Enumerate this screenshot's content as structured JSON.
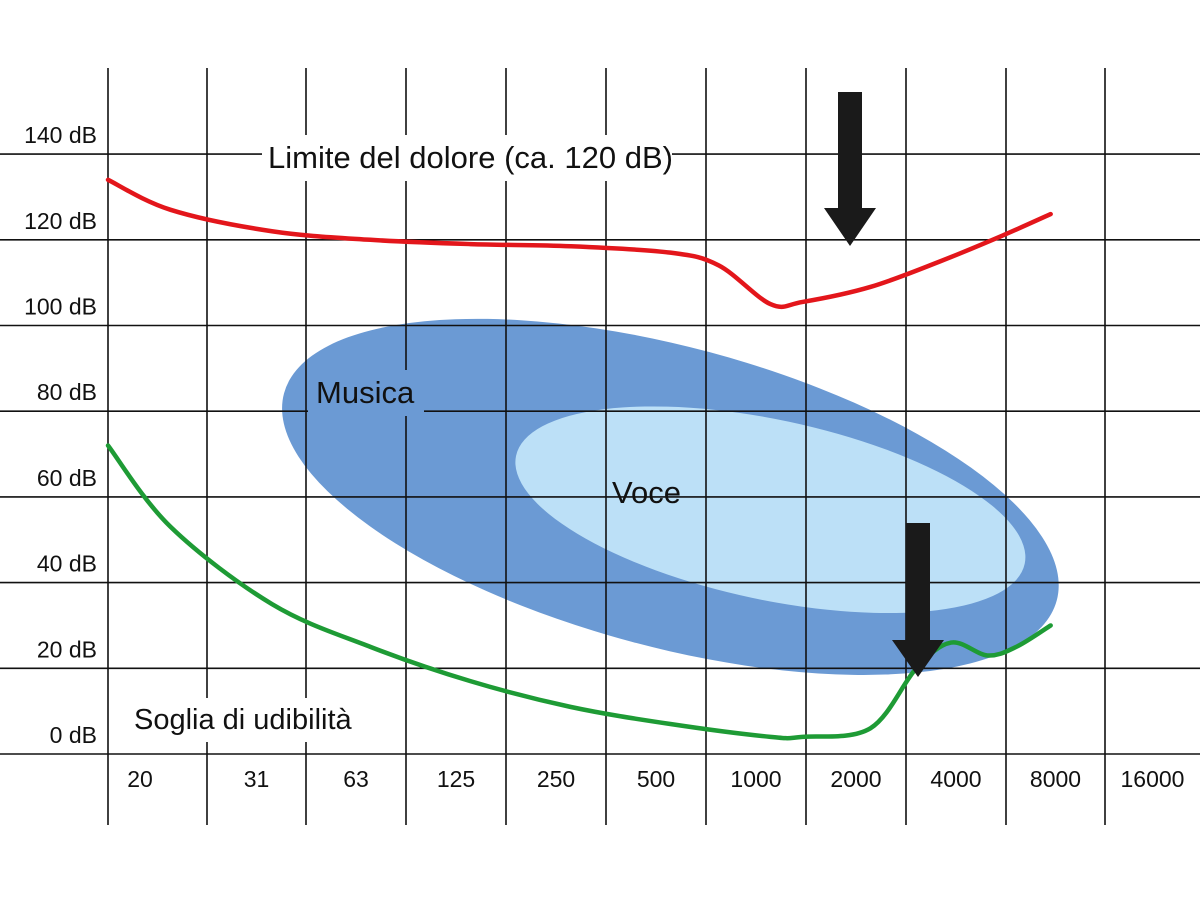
{
  "chart_data": {
    "type": "line",
    "title": "",
    "xlabel": "",
    "ylabel": "",
    "x_scale": "log2-categorical",
    "categories": [
      "20",
      "31",
      "63",
      "125",
      "250",
      "500",
      "1000",
      "2000",
      "4000",
      "8000",
      "16000"
    ],
    "y_ticks": [
      "0 dB",
      "20 dB",
      "40 dB",
      "60 dB",
      "80 dB",
      "100 dB",
      "120 dB",
      "140 dB"
    ],
    "ylim": [
      -10,
      150
    ],
    "grid": true,
    "series": [
      {
        "name": "Limite del dolore (ca. 120 dB)",
        "color": "#e3161b",
        "points": [
          [
            20,
            134
          ],
          [
            31,
            127
          ],
          [
            63,
            122
          ],
          [
            125,
            120
          ],
          [
            250,
            119
          ],
          [
            500,
            118.5
          ],
          [
            1000,
            117
          ],
          [
            1400,
            114
          ],
          [
            2000,
            105
          ],
          [
            2500,
            105.5
          ],
          [
            4000,
            109
          ],
          [
            6500,
            115
          ],
          [
            10000,
            121
          ],
          [
            14000,
            126
          ]
        ]
      },
      {
        "name": "Soglia di udibilità",
        "color": "#1e9b35",
        "points": [
          [
            20,
            72
          ],
          [
            31,
            53
          ],
          [
            63,
            35
          ],
          [
            125,
            25
          ],
          [
            250,
            17
          ],
          [
            500,
            11
          ],
          [
            1000,
            7
          ],
          [
            2000,
            4
          ],
          [
            2500,
            4
          ],
          [
            4000,
            6
          ],
          [
            5500,
            20
          ],
          [
            7000,
            26
          ],
          [
            9000,
            23
          ],
          [
            11000,
            25
          ],
          [
            14000,
            30
          ]
        ]
      }
    ],
    "regions": [
      {
        "name": "Musica",
        "color": "#6b9ad4",
        "center": [
          1000,
          60
        ],
        "rx_octaves": 4,
        "ry_db": 35,
        "rotate": 15
      },
      {
        "name": "Voce",
        "color": "#bce0f7",
        "center": [
          2000,
          57
        ],
        "rx_octaves": 2.6,
        "ry_db": 21,
        "rotate": 12
      }
    ],
    "annotations": [
      {
        "text": "Limite del dolore (ca. 120 dB)",
        "target": "pain-threshold"
      },
      {
        "text": "Musica",
        "target": "music-region"
      },
      {
        "text": "Voce",
        "target": "voice-region"
      },
      {
        "text": "Soglia di udibilità",
        "target": "hearing-threshold"
      }
    ],
    "arrows": [
      {
        "points_to": [
          2000,
          117
        ],
        "meaning": "dip in pain threshold",
        "color": "#1a1a1a"
      },
      {
        "points_to": [
          4000,
          18
        ],
        "meaning": "dip in hearing threshold",
        "color": "#1a1a1a"
      }
    ]
  }
}
